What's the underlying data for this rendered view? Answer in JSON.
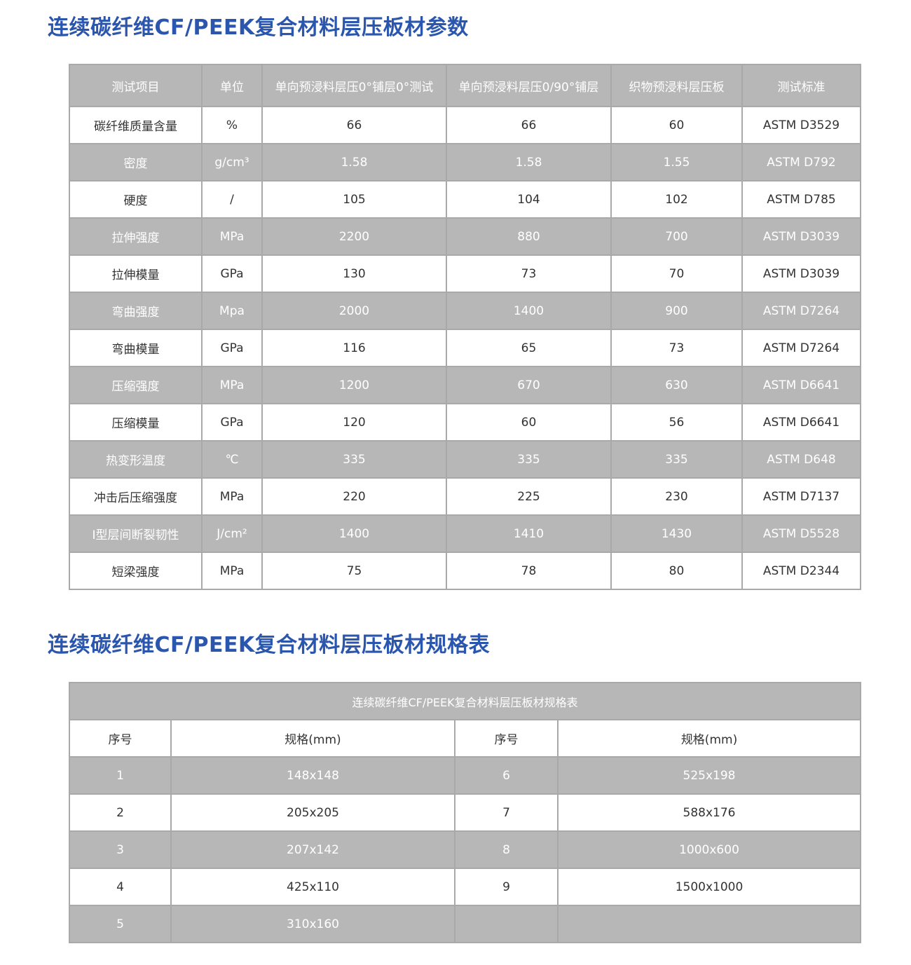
{
  "params": {
    "title": "连续碳纤维CF/PEEK复合材料层压板材参数",
    "headers": [
      "测试项目",
      "单位",
      "单向预浸料层压0°铺层0°测试",
      "单向预浸料层压0/90°铺层",
      "织物预浸料层压板",
      "测试标准"
    ],
    "rows": [
      [
        "碳纤维质量含量",
        "%",
        "66",
        "66",
        "60",
        "ASTM D3529"
      ],
      [
        "密度",
        "g/cm³",
        "1.58",
        "1.58",
        "1.55",
        "ASTM D792"
      ],
      [
        "硬度",
        "/",
        "105",
        "104",
        "102",
        "ASTM D785"
      ],
      [
        "拉伸强度",
        "MPa",
        "2200",
        "880",
        "700",
        "ASTM D3039"
      ],
      [
        "拉伸模量",
        "GPa",
        "130",
        "73",
        "70",
        "ASTM D3039"
      ],
      [
        "弯曲强度",
        "Mpa",
        "2000",
        "1400",
        "900",
        "ASTM D7264"
      ],
      [
        "弯曲模量",
        "GPa",
        "116",
        "65",
        "73",
        "ASTM D7264"
      ],
      [
        "压缩强度",
        "MPa",
        "1200",
        "670",
        "630",
        "ASTM D6641"
      ],
      [
        "压缩模量",
        "GPa",
        "120",
        "60",
        "56",
        "ASTM D6641"
      ],
      [
        "热变形温度",
        "℃",
        "335",
        "335",
        "335",
        "ASTM D648"
      ],
      [
        "冲击后压缩强度",
        "MPa",
        "220",
        "225",
        "230",
        "ASTM D7137"
      ],
      [
        "Ⅰ型层间断裂韧性",
        "J/cm²",
        "1400",
        "1410",
        "1430",
        "ASTM D5528"
      ],
      [
        "短梁强度",
        "MPa",
        "75",
        "78",
        "80",
        "ASTM D2344"
      ]
    ]
  },
  "specs": {
    "title": "连续碳纤维CF/PEEK复合材料层压板材规格表",
    "table_caption": "连续碳纤维CF/PEEK复合材料层压板材规格表",
    "headers": [
      "序号",
      "规格(mm)",
      "序号",
      "规格(mm)"
    ],
    "rows": [
      [
        "1",
        "148x148",
        "6",
        "525x198"
      ],
      [
        "2",
        "205x205",
        "7",
        "588x176"
      ],
      [
        "3",
        "207x142",
        "8",
        "1000x600"
      ],
      [
        "4",
        "425x110",
        "9",
        "1500x1000"
      ],
      [
        "5",
        "310x160",
        "",
        ""
      ]
    ]
  },
  "colors": {
    "title": "#2b56ad",
    "gray_row": "#b8b7b7",
    "border": "#a9a9a9"
  }
}
